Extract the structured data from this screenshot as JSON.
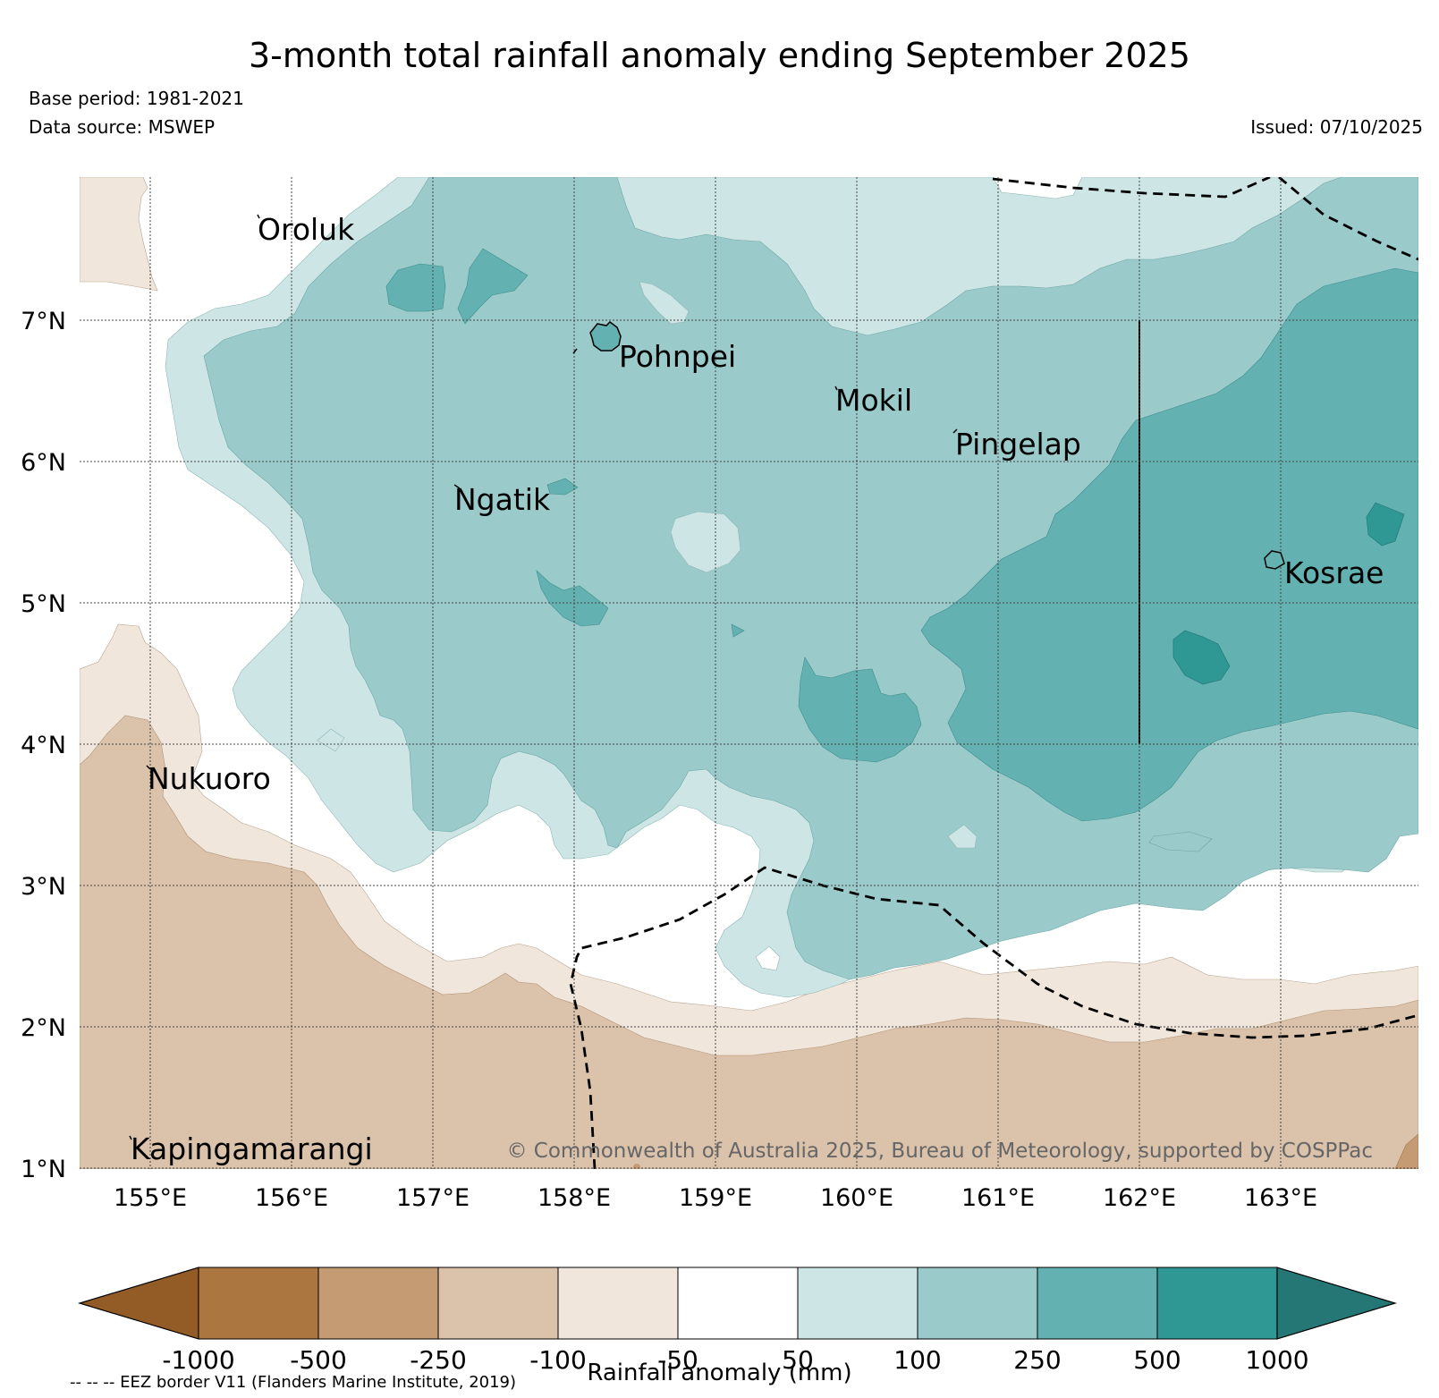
{
  "title": "3-month total rainfall anomaly ending September 2025",
  "base_period": "Base period: 1981-2021",
  "data_source": "Data source: MSWEP",
  "issued": "Issued: 07/10/2025",
  "copyright": "© Commonwealth of Australia 2025, Bureau of Meteorology, supported by COSPPac",
  "footnote": "-- -- -- EEZ border V11 (Flanders Marine Institute, 2019)",
  "colorbar": {
    "title": "Rainfall anomaly (mm)",
    "ticks": [
      "-1000",
      "-500",
      "-250",
      "-100",
      "-50",
      "50",
      "100",
      "250",
      "500",
      "1000"
    ],
    "colors": [
      "#935b26",
      "#ab763f",
      "#c49b73",
      "#dbc2aa",
      "#f1e6dc",
      "#ffffff",
      "#cde6e5",
      "#9acaca",
      "#63b1b1",
      "#2f9794",
      "#247774"
    ]
  },
  "axes": {
    "lat_labels": [
      "7°N",
      "6°N",
      "5°N",
      "4°N",
      "3°N",
      "2°N",
      "1°N"
    ],
    "lon_labels": [
      "155°E",
      "156°E",
      "157°E",
      "158°E",
      "159°E",
      "160°E",
      "161°E",
      "162°E",
      "163°E"
    ]
  },
  "places": {
    "oroluk": "Oroluk",
    "pohnpei": "Pohnpei",
    "mokil": "Mokil",
    "pingelap": "Pingelap",
    "ngatik": "Ngatik",
    "kosrae": "Kosrae",
    "nukuoro": "Nukuoro",
    "kapingamarangi": "Kapingamarangi"
  }
}
